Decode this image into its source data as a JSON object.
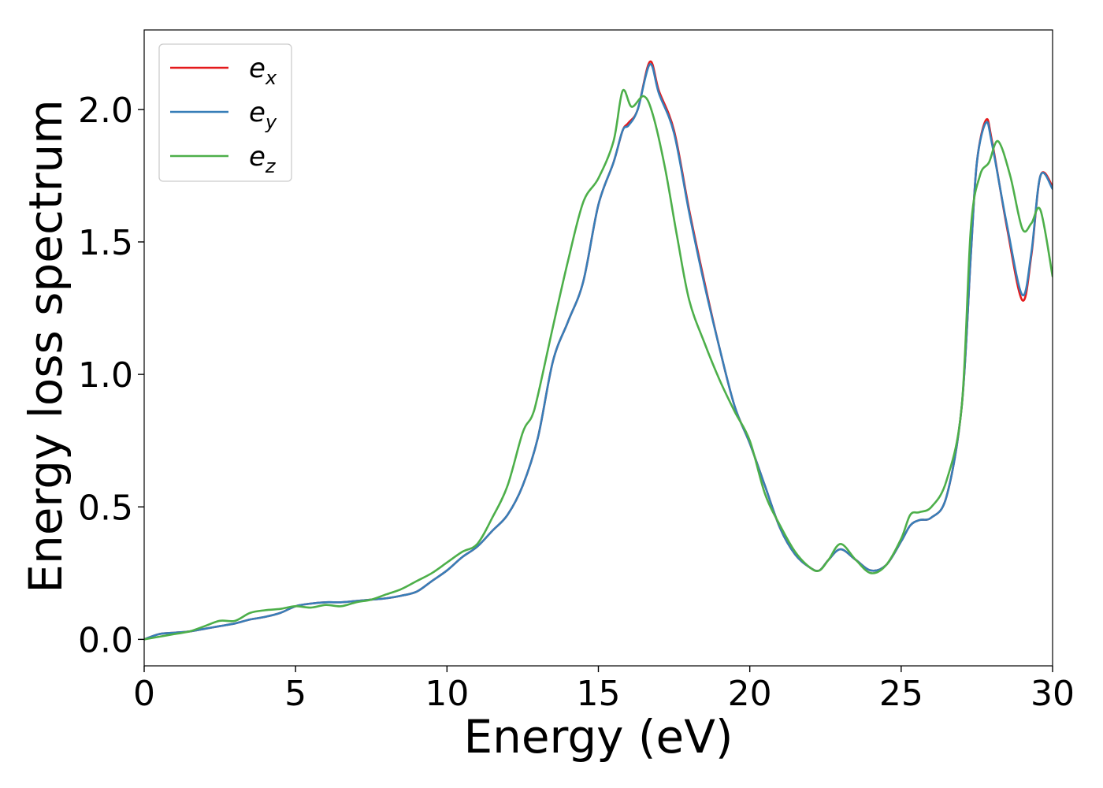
{
  "chart_data": {
    "type": "line",
    "title": "",
    "xlabel": "Energy (eV)",
    "ylabel": "Energy loss spectrum",
    "xlim": [
      0,
      30
    ],
    "ylim": [
      -0.1,
      2.3
    ],
    "xticks": [
      0,
      5,
      10,
      15,
      20,
      25,
      30
    ],
    "xtick_labels": [
      "0",
      "5",
      "10",
      "15",
      "20",
      "25",
      "30"
    ],
    "yticks": [
      0.0,
      0.5,
      1.0,
      1.5,
      2.0
    ],
    "ytick_labels": [
      "0.0",
      "0.5",
      "1.0",
      "1.5",
      "2.0"
    ],
    "grid": false,
    "legend_position": "top-left",
    "series": [
      {
        "name": "e_x",
        "label_base": "e",
        "label_sub": "x",
        "color": "#e41a1c",
        "x": [
          0,
          0.5,
          1,
          1.5,
          2,
          2.5,
          3,
          3.5,
          4,
          4.5,
          5,
          5.5,
          6,
          6.5,
          7,
          7.5,
          8,
          8.5,
          9,
          9.5,
          10,
          10.5,
          11,
          11.5,
          12,
          12.5,
          13,
          13.5,
          14,
          14.5,
          15,
          15.5,
          15.8,
          16,
          16.3,
          16.7,
          17,
          17.5,
          18,
          18.5,
          19,
          19.5,
          20,
          20.5,
          21,
          21.5,
          22,
          22.3,
          22.6,
          23,
          23.5,
          24,
          24.5,
          25,
          25.3,
          25.6,
          26,
          26.5,
          27,
          27.3,
          27.5,
          27.8,
          28,
          28.5,
          29,
          29.3,
          29.6,
          30
        ],
        "y": [
          0.0,
          0.02,
          0.025,
          0.03,
          0.04,
          0.05,
          0.06,
          0.075,
          0.085,
          0.1,
          0.125,
          0.135,
          0.14,
          0.14,
          0.145,
          0.15,
          0.155,
          0.165,
          0.18,
          0.22,
          0.26,
          0.31,
          0.35,
          0.41,
          0.47,
          0.58,
          0.76,
          1.05,
          1.2,
          1.35,
          1.64,
          1.8,
          1.92,
          1.95,
          2.0,
          2.18,
          2.07,
          1.92,
          1.62,
          1.35,
          1.1,
          0.88,
          0.74,
          0.58,
          0.42,
          0.32,
          0.27,
          0.26,
          0.3,
          0.34,
          0.3,
          0.26,
          0.28,
          0.37,
          0.43,
          0.45,
          0.46,
          0.54,
          0.88,
          1.45,
          1.8,
          1.96,
          1.88,
          1.55,
          1.28,
          1.45,
          1.75,
          1.71
        ]
      },
      {
        "name": "e_y",
        "label_base": "e",
        "label_sub": "y",
        "color": "#377eb8",
        "x": [
          0,
          0.5,
          1,
          1.5,
          2,
          2.5,
          3,
          3.5,
          4,
          4.5,
          5,
          5.5,
          6,
          6.5,
          7,
          7.5,
          8,
          8.5,
          9,
          9.5,
          10,
          10.5,
          11,
          11.5,
          12,
          12.5,
          13,
          13.5,
          14,
          14.5,
          15,
          15.5,
          15.8,
          16,
          16.3,
          16.7,
          17,
          17.5,
          18,
          18.5,
          19,
          19.5,
          20,
          20.5,
          21,
          21.5,
          22,
          22.3,
          22.6,
          23,
          23.5,
          24,
          24.5,
          25,
          25.3,
          25.6,
          26,
          26.5,
          27,
          27.3,
          27.5,
          27.8,
          28,
          28.5,
          29,
          29.3,
          29.6,
          30
        ],
        "y": [
          0.0,
          0.02,
          0.025,
          0.03,
          0.04,
          0.05,
          0.06,
          0.075,
          0.085,
          0.1,
          0.125,
          0.135,
          0.14,
          0.14,
          0.145,
          0.15,
          0.155,
          0.165,
          0.18,
          0.22,
          0.26,
          0.31,
          0.35,
          0.41,
          0.47,
          0.58,
          0.76,
          1.05,
          1.2,
          1.35,
          1.64,
          1.8,
          1.92,
          1.94,
          2.0,
          2.17,
          2.06,
          1.91,
          1.61,
          1.34,
          1.1,
          0.88,
          0.74,
          0.58,
          0.42,
          0.32,
          0.27,
          0.26,
          0.3,
          0.34,
          0.3,
          0.26,
          0.28,
          0.37,
          0.43,
          0.45,
          0.46,
          0.54,
          0.88,
          1.45,
          1.8,
          1.95,
          1.87,
          1.56,
          1.3,
          1.46,
          1.75,
          1.7
        ]
      },
      {
        "name": "e_z",
        "label_base": "e",
        "label_sub": "z",
        "color": "#4daf4a",
        "x": [
          0,
          0.5,
          1,
          1.5,
          2,
          2.5,
          3,
          3.5,
          4,
          4.5,
          5,
          5.5,
          6,
          6.5,
          7,
          7.5,
          8,
          8.5,
          9,
          9.5,
          10,
          10.5,
          11,
          11.5,
          12,
          12.5,
          12.8,
          13,
          13.5,
          14,
          14.5,
          15,
          15.5,
          15.8,
          16.1,
          16.5,
          16.8,
          17.2,
          17.6,
          18,
          18.5,
          19,
          19.5,
          20,
          20.5,
          21,
          21.5,
          22,
          22.3,
          22.6,
          23,
          23.5,
          24,
          24.5,
          25,
          25.3,
          25.6,
          26,
          26.5,
          27,
          27.3,
          27.6,
          27.9,
          28.2,
          28.6,
          29,
          29.3,
          29.6,
          30
        ],
        "y": [
          0.0,
          0.01,
          0.02,
          0.03,
          0.05,
          0.07,
          0.07,
          0.1,
          0.11,
          0.115,
          0.125,
          0.12,
          0.13,
          0.125,
          0.14,
          0.15,
          0.17,
          0.19,
          0.22,
          0.25,
          0.29,
          0.33,
          0.36,
          0.46,
          0.58,
          0.78,
          0.84,
          0.92,
          1.18,
          1.43,
          1.65,
          1.74,
          1.88,
          2.07,
          2.01,
          2.05,
          1.98,
          1.78,
          1.52,
          1.28,
          1.12,
          0.98,
          0.86,
          0.75,
          0.55,
          0.43,
          0.33,
          0.27,
          0.26,
          0.3,
          0.36,
          0.3,
          0.25,
          0.28,
          0.38,
          0.47,
          0.48,
          0.5,
          0.6,
          0.88,
          1.55,
          1.75,
          1.8,
          1.88,
          1.75,
          1.55,
          1.57,
          1.62,
          1.37
        ]
      }
    ]
  }
}
